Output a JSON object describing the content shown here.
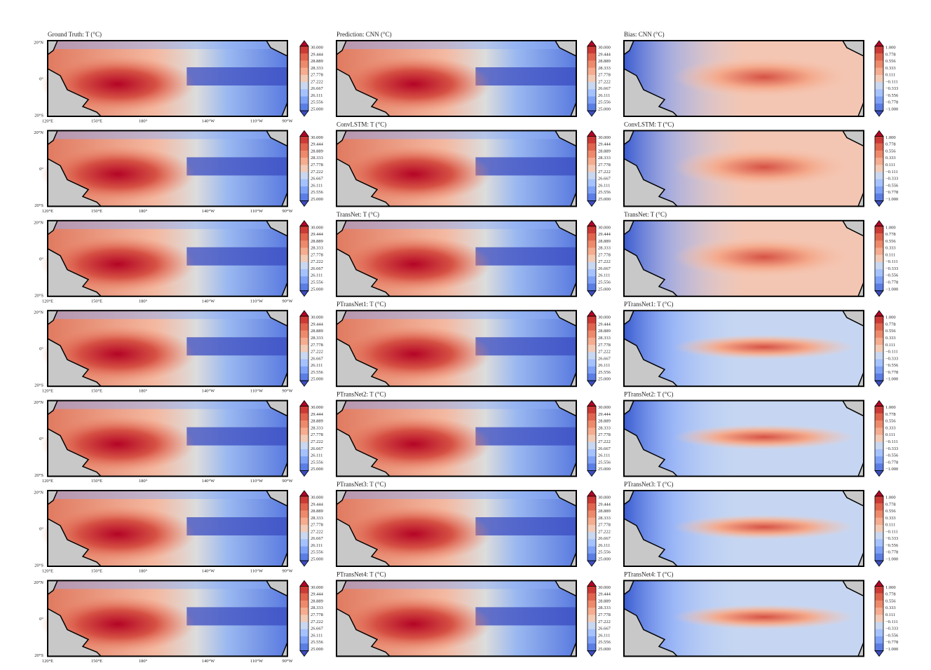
{
  "figure": {
    "truth_title": "Ground Truth: T (°C)",
    "lat_labels": [
      "20°N",
      "0°",
      "20°S"
    ],
    "lon_labels": [
      "120°E",
      "150°E",
      "180°",
      "140°W",
      "110°W",
      "90°W"
    ],
    "temp_colorbar": [
      "30.000",
      "29.444",
      "28.889",
      "28.333",
      "27.778",
      "27.222",
      "26.667",
      "26.111",
      "25.556",
      "25.000"
    ],
    "bias_colorbar": [
      "1.000",
      "0.778",
      "0.556",
      "0.333",
      "0.111",
      "−0.111",
      "−0.333",
      "−0.556",
      "−0.778",
      "−1.000"
    ],
    "rows": [
      {
        "prediction_title": "Prediction: CNN (°C)",
        "bias_title": "Bias: CNN (°C)"
      },
      {
        "prediction_title": "ConvLSTM: T (°C)",
        "bias_title": "ConvLSTM: T (°C)"
      },
      {
        "prediction_title": "TransNet: T (°C)",
        "bias_title": "TransNet: T (°C)"
      },
      {
        "prediction_title": "PTransNet1: T (°C)",
        "bias_title": "PTransNet1: T (°C)"
      },
      {
        "prediction_title": "PTransNet2: T (°C)",
        "bias_title": "PTransNet2: T (°C)"
      },
      {
        "prediction_title": "PTransNet3: T (°C)",
        "bias_title": "PTransNet3: T (°C)"
      },
      {
        "prediction_title": "PTransNet4: T (°C)",
        "bias_title": "PTransNet4: T (°C)"
      }
    ]
  }
}
